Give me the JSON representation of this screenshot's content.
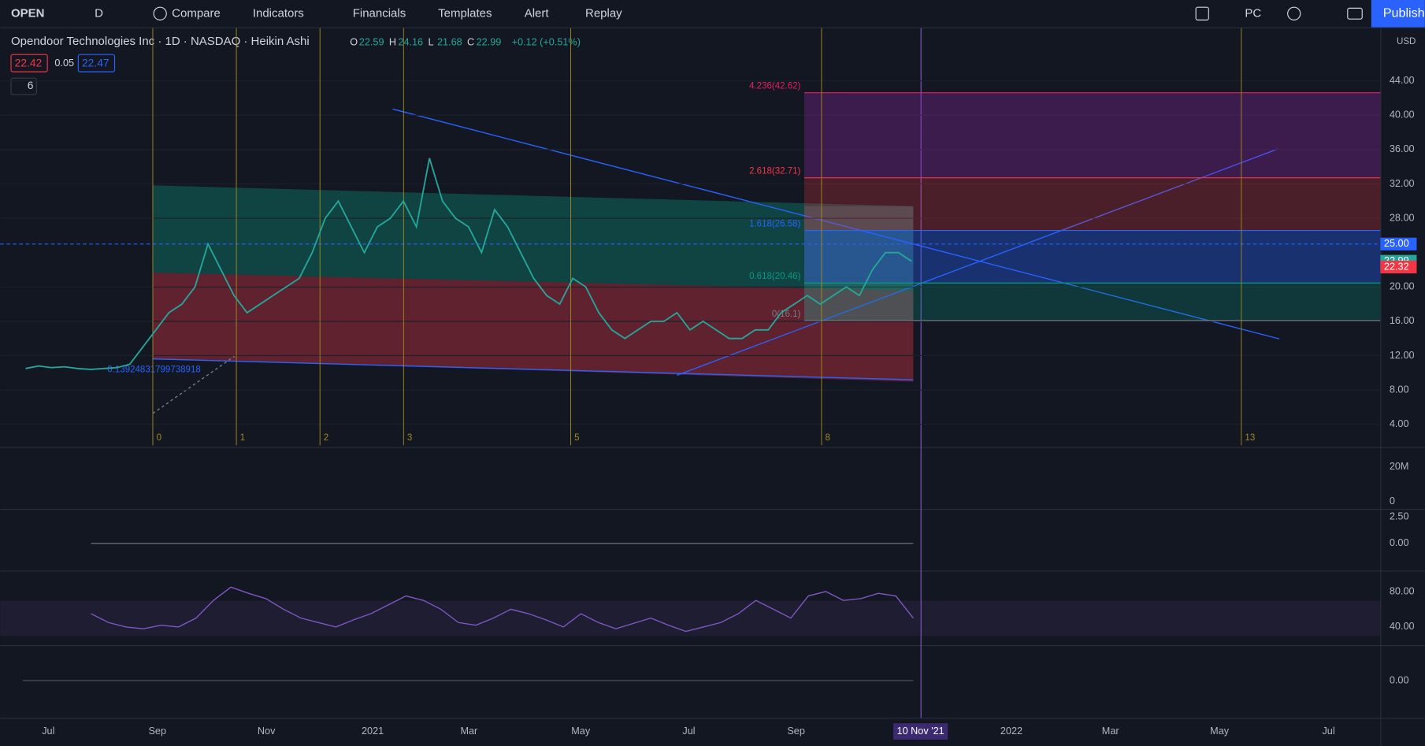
{
  "toolbar": {
    "symbol": "OPEN",
    "interval": "D",
    "items": [
      "Compare",
      "Indicators",
      "Financials",
      "Templates",
      "Alert",
      "Replay"
    ],
    "layout": "PC",
    "publish": "Publish"
  },
  "legend": {
    "title": "Opendoor Technologies Inc · 1D · NASDAQ · Heikin Ashi",
    "ohlc": [
      {
        "label": "O",
        "value": "22.59"
      },
      {
        "label": "H",
        "value": "24.16"
      },
      {
        "label": "L",
        "value": "21.68"
      },
      {
        "label": "C",
        "value": "22.99"
      }
    ],
    "change": "+0.12 (+0.51%)",
    "bid": "22.42",
    "spread": "0.05",
    "ask": "22.47",
    "indicators_count": "6"
  },
  "price_axis": {
    "currency": "USD",
    "ticks": [
      {
        "value": 44,
        "label": "44.00"
      },
      {
        "value": 40,
        "label": "40.00"
      },
      {
        "value": 36,
        "label": "36.00"
      },
      {
        "value": 32,
        "label": "32.00"
      },
      {
        "value": 28,
        "label": "28.00"
      },
      {
        "value": 20,
        "label": "20.00"
      },
      {
        "value": 16,
        "label": "16.00"
      },
      {
        "value": 12,
        "label": "12.00"
      },
      {
        "value": 8,
        "label": "8.00"
      },
      {
        "value": 4,
        "label": "4.00"
      }
    ],
    "badges": [
      {
        "value": 25,
        "label": "25.00",
        "color": "#2962ff"
      },
      {
        "value": 22.99,
        "label": "22.99",
        "color": "#26a69a"
      },
      {
        "value": 22.32,
        "label": "22.32",
        "color": "#f23645"
      }
    ]
  },
  "fib_levels": [
    {
      "value": 42.62,
      "label": "4.236(42.62)",
      "color": "#e91e63"
    },
    {
      "value": 32.71,
      "label": "2.618(32.71)",
      "color": "#f23645"
    },
    {
      "value": 26.58,
      "label": "1.618(26.58)",
      "color": "#2962ff"
    },
    {
      "value": 20.46,
      "label": "0.618(20.46)",
      "color": "#089981"
    },
    {
      "value": 16.1,
      "label": "0(16.1)",
      "color": "#787b86"
    }
  ],
  "channel_label": "0.13924831799738918",
  "cycles": [
    "0",
    "1",
    "2",
    "3",
    "5",
    "8",
    "13"
  ],
  "price_series": [
    10.5,
    10.8,
    10.6,
    10.7,
    10.5,
    10.4,
    10.5,
    10.6,
    11,
    13,
    15,
    17,
    18,
    20,
    25,
    22,
    19,
    17,
    18,
    19,
    20,
    21,
    24,
    28,
    30,
    27,
    24,
    27,
    28,
    30,
    27,
    35,
    30,
    28,
    27,
    24,
    29,
    27,
    24,
    21,
    19,
    18,
    21,
    20,
    17,
    15,
    14,
    15,
    16,
    16,
    17,
    15,
    16,
    15,
    14,
    14,
    15,
    15,
    17,
    18,
    19,
    18,
    19,
    20,
    19,
    22,
    24,
    24,
    23
  ],
  "volume_ticks": [
    {
      "value": 20,
      "label": "20M"
    },
    0
  ],
  "macd_ticks": [
    {
      "value": 2.5,
      "label": "2.50"
    },
    {
      "value": 0,
      "label": "0.00"
    }
  ],
  "rsi": {
    "ticks": [
      {
        "value": 80,
        "label": "80.00"
      },
      {
        "value": 40,
        "label": "40.00"
      }
    ],
    "values": [
      55,
      45,
      40,
      38,
      42,
      40,
      50,
      70,
      85,
      78,
      72,
      60,
      50,
      45,
      40,
      48,
      55,
      65,
      75,
      70,
      60,
      45,
      42,
      50,
      60,
      55,
      48,
      40,
      55,
      45,
      38,
      44,
      50,
      42,
      35,
      40,
      45,
      55,
      70,
      60,
      50,
      75,
      80,
      70,
      72,
      78,
      75,
      50
    ]
  },
  "osc_ticks": [
    {
      "value": 0,
      "label": "0.00"
    }
  ],
  "time_axis": {
    "labels": [
      "Jul",
      "Sep",
      "Nov",
      "2021",
      "Mar",
      "May",
      "Jul",
      "Sep",
      "2022",
      "Mar",
      "May",
      "Jul"
    ],
    "cursor": "10 Nov '21"
  }
}
